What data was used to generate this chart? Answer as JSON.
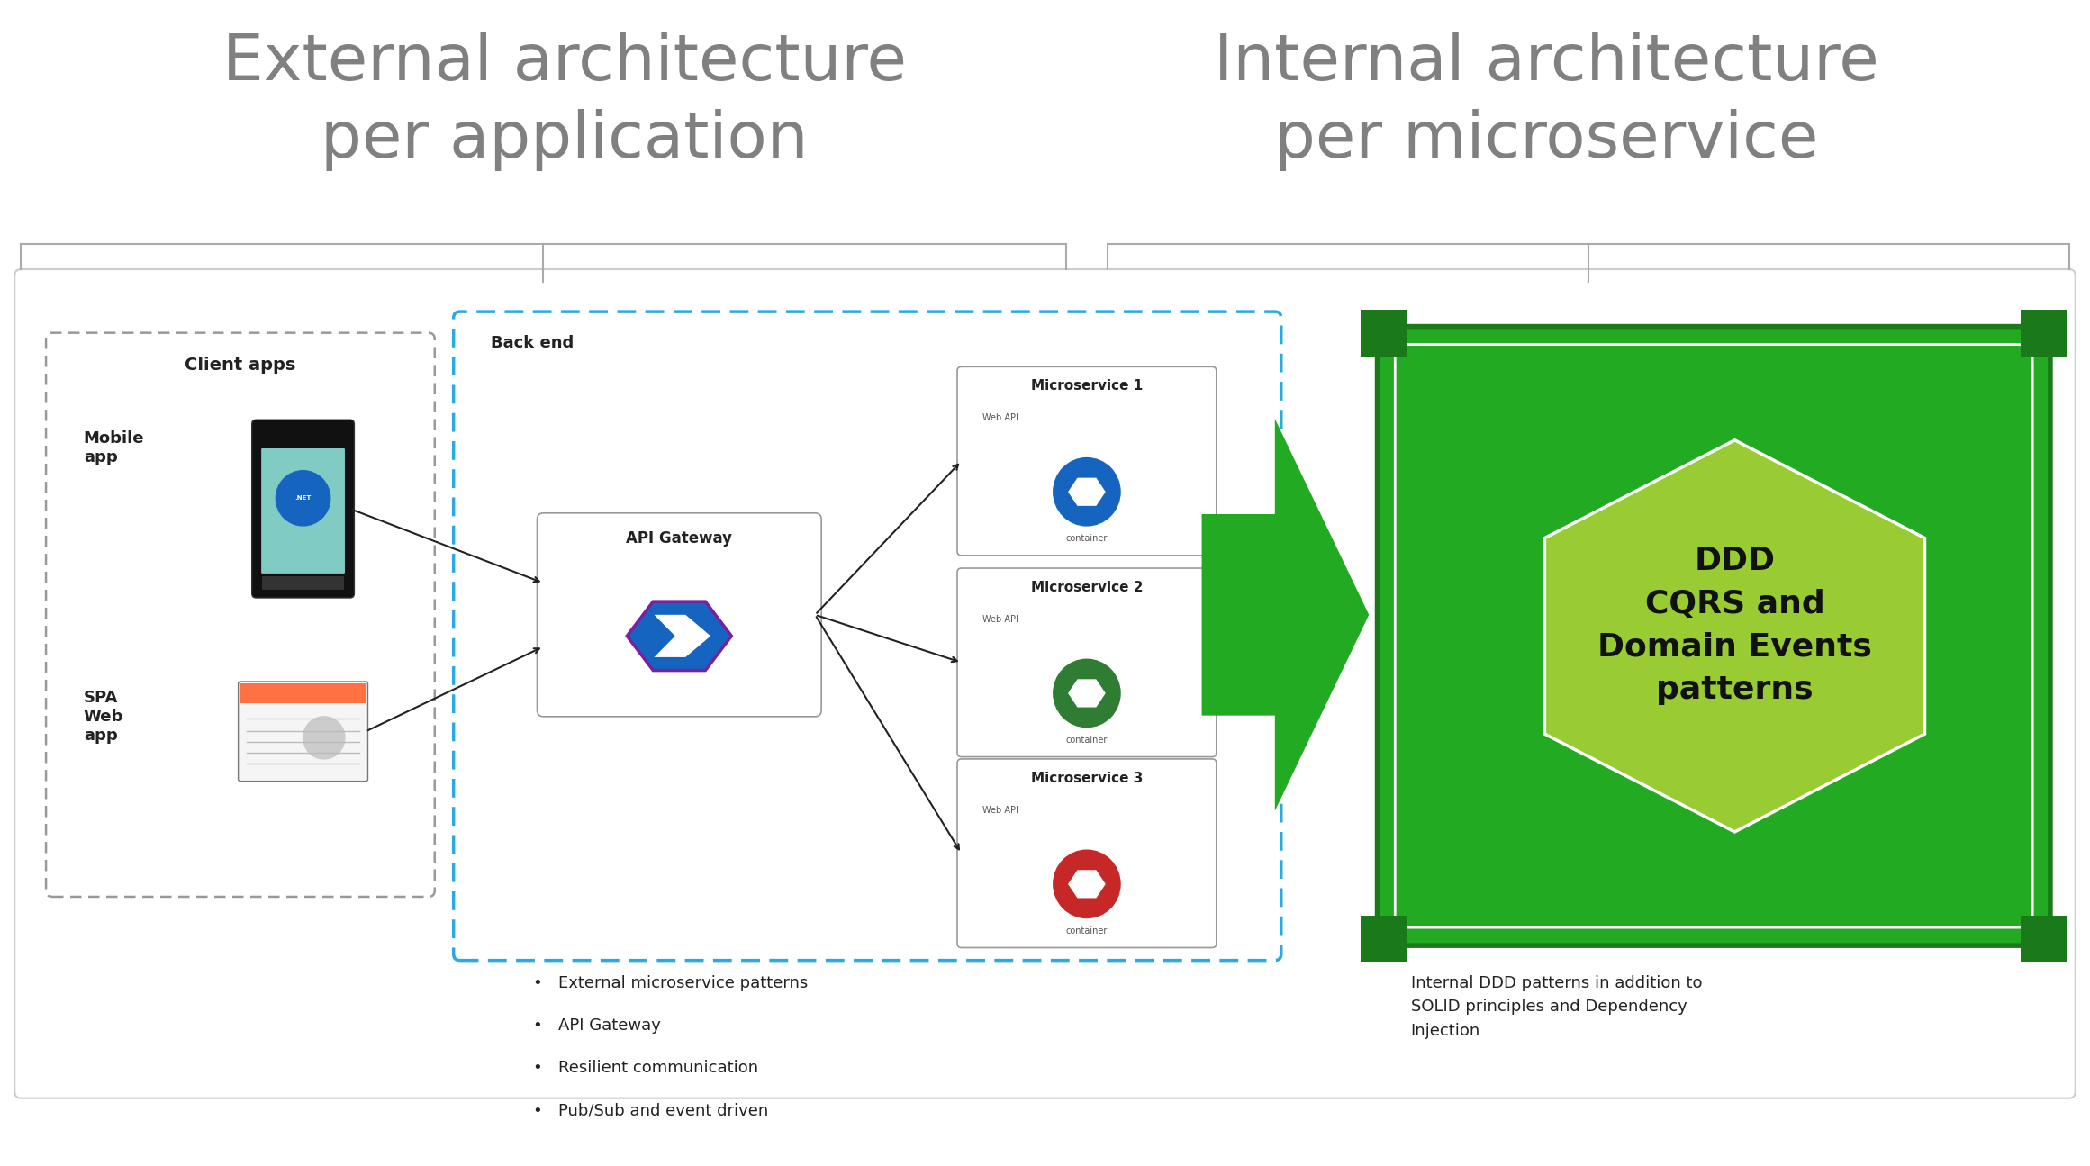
{
  "title_left": "External architecture\nper application",
  "title_right": "Internal architecture\nper microservice",
  "title_color": "#808080",
  "title_fontsize": 52,
  "bg_color": "#ffffff",
  "left_bullets": [
    "External microservice patterns",
    "API Gateway",
    "Resilient communication",
    "Pub/Sub and event driven"
  ],
  "right_text": "Internal DDD patterns in addition to\nSOLID principles and Dependency\nInjection",
  "client_apps_label": "Client apps",
  "mobile_label": "Mobile\napp",
  "spa_label": "SPA\nWeb\napp",
  "backend_label": "Back end",
  "gateway_label": "API Gateway",
  "ms1_label": "Microservice 1",
  "ms2_label": "Microservice 2",
  "ms3_label": "Microservice 3",
  "webapi_label": "Web API",
  "container_label": "container",
  "ddd_text": "DDD\nCQRS and\nDomain Events\npatterns",
  "green_dark": "#1a7a1a",
  "green_mid": "#22aa22",
  "green_light": "#33cc33",
  "green_hex_fill": "#99cc33",
  "teal_dashed": "#29abe2",
  "ms1_dot_color": "#1565c0",
  "ms2_dot_color": "#2e7d32",
  "ms3_dot_color": "#c62828",
  "bracket_color": "#aaaaaa",
  "outer_border_color": "#cccccc",
  "arrow_color": "#222222",
  "text_dark": "#222222",
  "text_gray": "#555555"
}
